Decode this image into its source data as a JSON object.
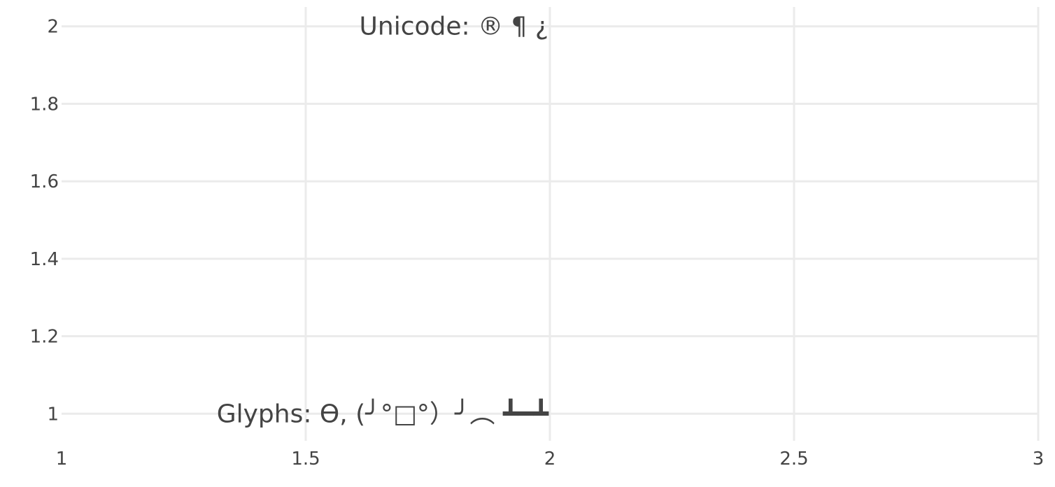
{
  "chart_data": {
    "type": "scatter",
    "title": "",
    "xlabel": "",
    "ylabel": "",
    "xlim": [
      1,
      3
    ],
    "ylim": [
      0.93,
      2.05
    ],
    "grid": true,
    "x_ticks": [
      1,
      1.5,
      2,
      2.5,
      3
    ],
    "x_tick_labels": [
      "1",
      "1.5",
      "2",
      "2.5",
      "3"
    ],
    "y_ticks": [
      1,
      1.2,
      1.4,
      1.6,
      1.8,
      2
    ],
    "y_tick_labels": [
      "1",
      "1.2",
      "1.4",
      "1.6",
      "1.8",
      "2"
    ],
    "series": [
      {
        "mode": "text",
        "x": [
          2,
          2
        ],
        "y": [
          1,
          2
        ],
        "textposition": "middle left"
      }
    ],
    "annotations": [
      {
        "x": 2,
        "y": 2,
        "text": "Unicode: ® ¶ ¿"
      },
      {
        "x": 2,
        "y": 1,
        "text": "Glyphs: Ɵ,  (╯°□°）╯︵ ┻━┻"
      }
    ]
  }
}
